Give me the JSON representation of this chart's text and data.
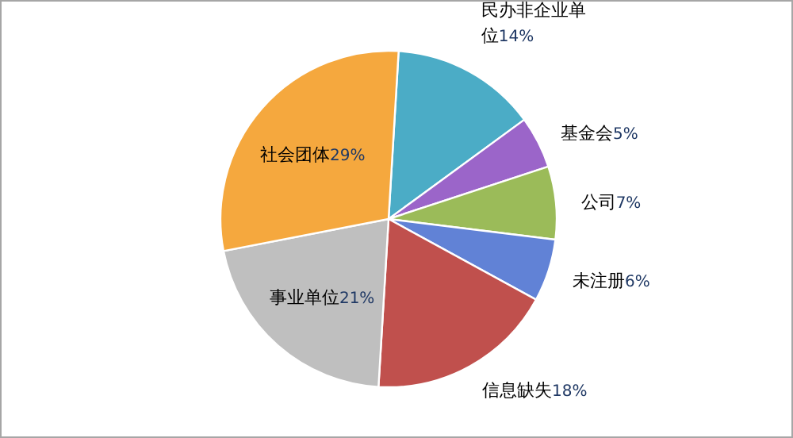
{
  "chart_data": {
    "type": "pie",
    "categories": [
      "民办非企业单位",
      "基金会",
      "公司",
      "未注册",
      "信息缺失",
      "事业单位",
      "社会团体"
    ],
    "values": [
      14,
      5,
      7,
      6,
      18,
      21,
      29
    ],
    "value_labels": [
      "14%",
      "5%",
      "7%",
      "6%",
      "18%",
      "21%",
      "29%"
    ],
    "colors": [
      "#4bacc6",
      "#9b65c9",
      "#9bbb59",
      "#6182d6",
      "#c0504d",
      "#bfbfbf",
      "#f5a83e"
    ]
  }
}
